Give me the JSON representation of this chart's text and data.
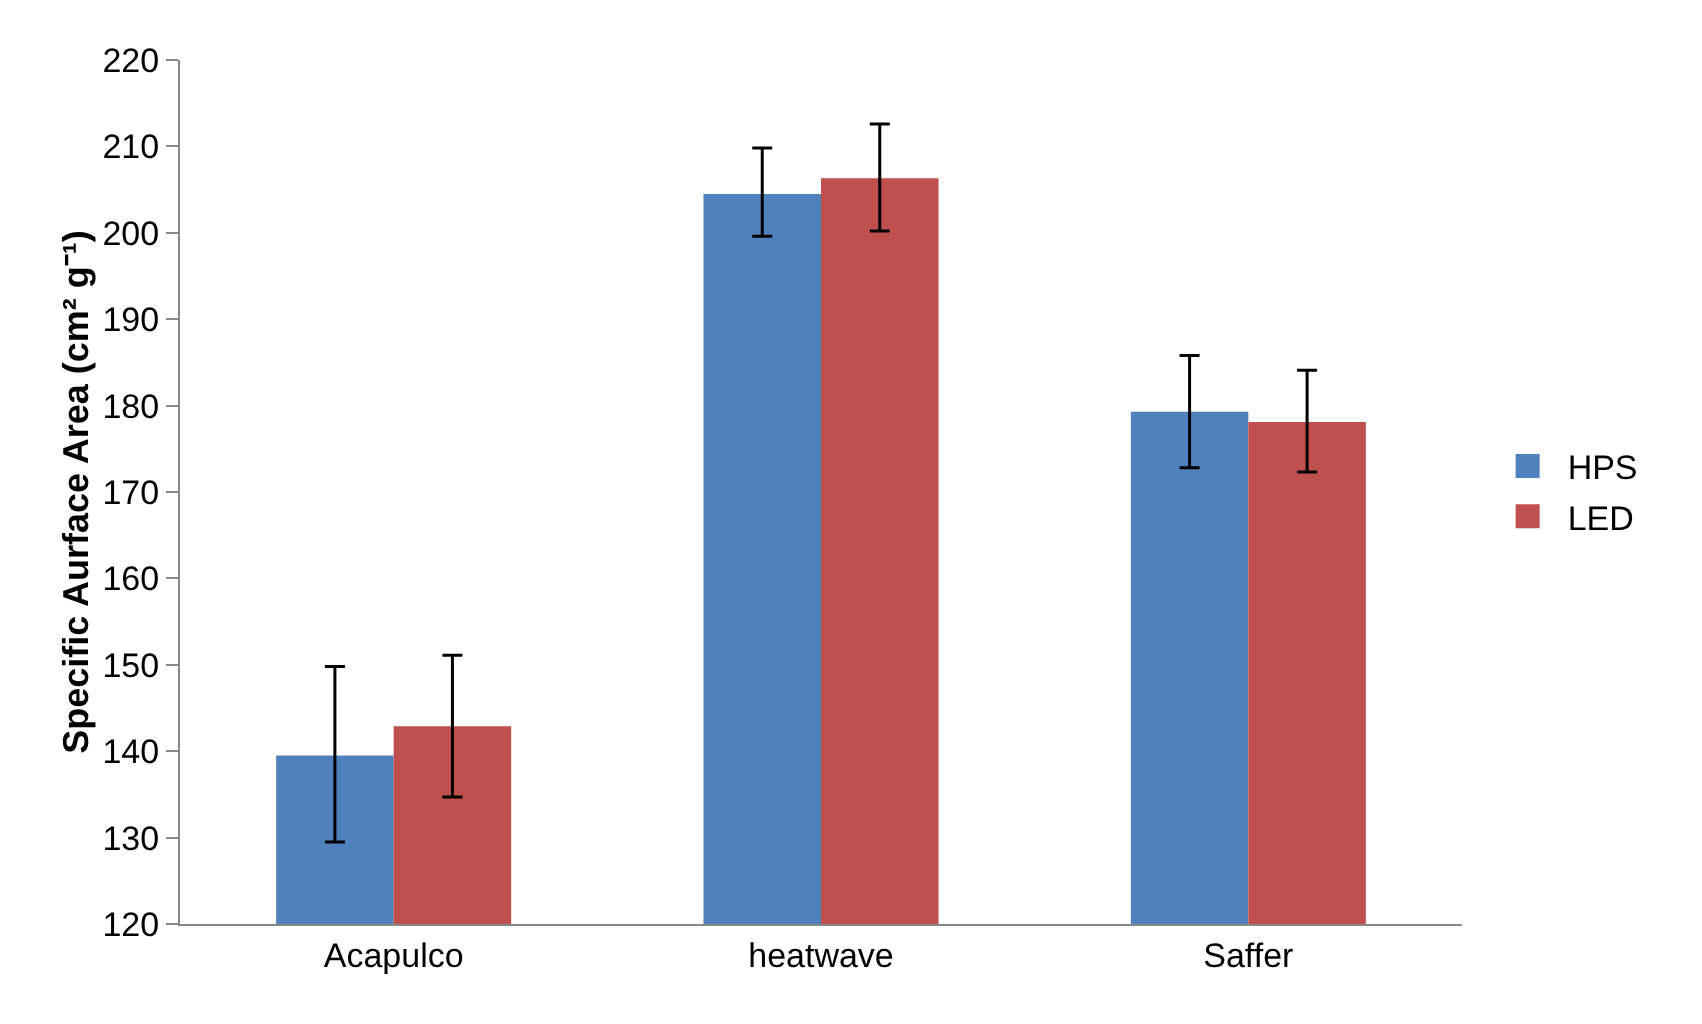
{
  "chart_data": {
    "type": "bar",
    "ylabel": "Specific Aurface Area (cm² g⁻¹)",
    "categories": [
      "Acapulco",
      "heatwave",
      "Saffer"
    ],
    "ylim": [
      120,
      220
    ],
    "yticks": [
      120,
      130,
      140,
      150,
      160,
      170,
      180,
      190,
      200,
      210,
      220
    ],
    "grid": false,
    "legend": "right",
    "series": [
      {
        "name": "HPS",
        "color": "#4f81bd",
        "values": [
          139.5,
          204.5,
          179.3
        ],
        "errors": [
          [
            129.5,
            149.8
          ],
          [
            199.6,
            209.8
          ],
          [
            172.8,
            185.8
          ]
        ]
      },
      {
        "name": "LED",
        "color": "#c0504d",
        "values": [
          142.9,
          206.3,
          178.1
        ],
        "errors": [
          [
            134.7,
            151.1
          ],
          [
            200.2,
            212.6
          ],
          [
            172.3,
            184.1
          ]
        ]
      }
    ]
  }
}
